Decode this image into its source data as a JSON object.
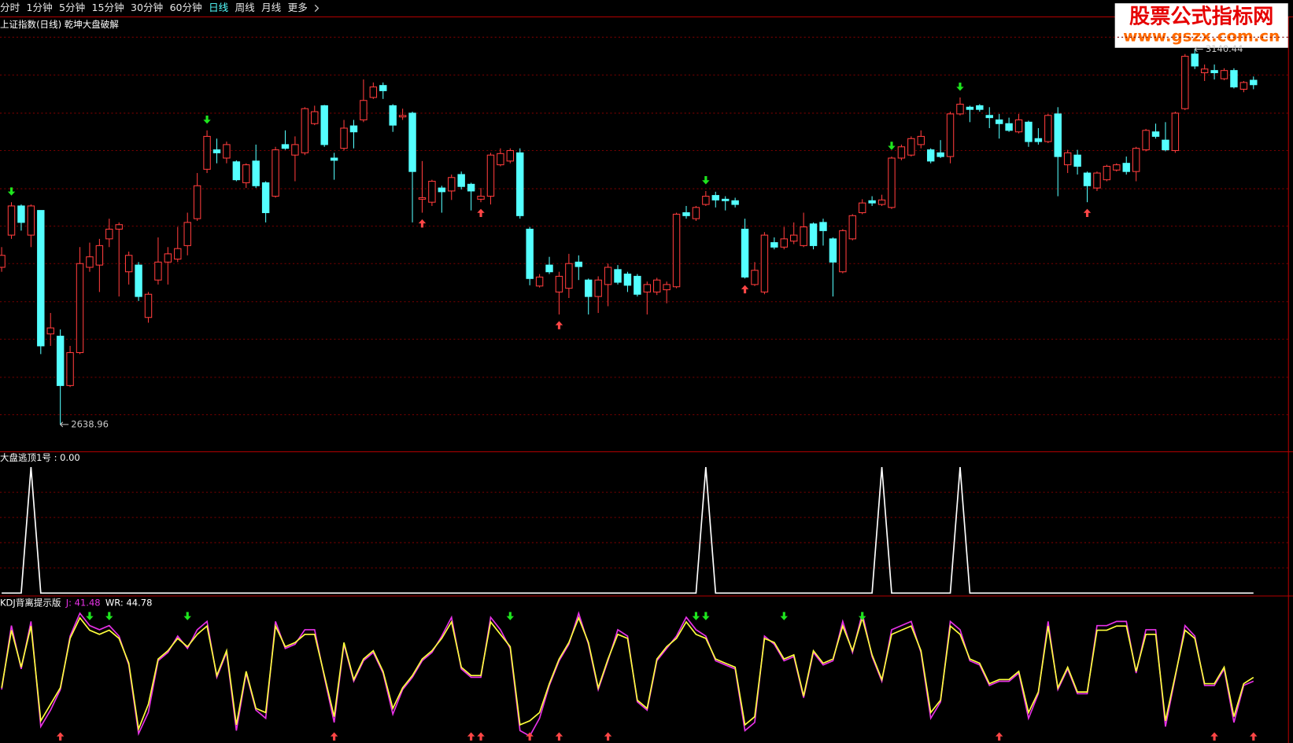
{
  "toolbar": {
    "tabs": [
      "分时",
      "1分钟",
      "5分钟",
      "15分钟",
      "30分钟",
      "60分钟",
      "日线",
      "周线",
      "月线",
      "更多"
    ],
    "active": 6
  },
  "watermark": {
    "title": "股票公式指标网",
    "url": "www.gszx.com.cn"
  },
  "chart_data": [
    {
      "type": "candlestick",
      "title": "上证指数(日线) 乾坤大盘破解",
      "up_color": "#ff3c3c",
      "down_color": "#54ffff",
      "ylim": [
        2603,
        3182
      ],
      "ygrid": [
        3156.5,
        3106,
        3055,
        3005,
        2954,
        2904,
        2854,
        2803,
        2753,
        2702,
        2652
      ],
      "ohlc": [
        [
          2849,
          2876,
          2843,
          2865
        ],
        [
          2892,
          2936,
          2887,
          2931
        ],
        [
          2931,
          2933,
          2898,
          2909
        ],
        [
          2892,
          2933,
          2876,
          2931
        ],
        [
          2925,
          2925,
          2733,
          2744
        ],
        [
          2760,
          2788,
          2744,
          2768
        ],
        [
          2757,
          2766,
          2638.96,
          2691
        ],
        [
          2691,
          2744,
          2689,
          2735
        ],
        [
          2735,
          2876,
          2733,
          2854
        ],
        [
          2849,
          2882,
          2843,
          2863
        ],
        [
          2852,
          2887,
          2816,
          2878
        ],
        [
          2887,
          2914,
          2876,
          2900
        ],
        [
          2900,
          2909,
          2810,
          2906
        ],
        [
          2843,
          2870,
          2826,
          2865
        ],
        [
          2852,
          2856,
          2804,
          2810
        ],
        [
          2782,
          2816,
          2775,
          2813
        ],
        [
          2832,
          2889,
          2826,
          2856
        ],
        [
          2856,
          2876,
          2826,
          2867
        ],
        [
          2860,
          2903,
          2856,
          2874
        ],
        [
          2878,
          2922,
          2865,
          2909
        ],
        [
          2914,
          2975,
          2911,
          2958
        ],
        [
          2980,
          3032,
          2975,
          3024
        ],
        [
          3006,
          3021,
          2988,
          3002
        ],
        [
          2995,
          3017,
          2988,
          3013
        ],
        [
          2990,
          2992,
          2964,
          2966
        ],
        [
          2962,
          2988,
          2955,
          2986
        ],
        [
          2991,
          3013,
          2955,
          2958
        ],
        [
          2962,
          2964,
          2909,
          2922
        ],
        [
          2944,
          3010,
          2942,
          3006
        ],
        [
          3013,
          3032,
          3006,
          3008
        ],
        [
          2999,
          3024,
          2964,
          3013
        ],
        [
          3002,
          3063,
          2999,
          3061
        ],
        [
          3041,
          3065,
          3039,
          3057
        ],
        [
          3065,
          3066,
          3010,
          3013
        ],
        [
          2995,
          3002,
          2966,
          2992
        ],
        [
          3008,
          3046,
          3005,
          3035
        ],
        [
          3038,
          3046,
          3008,
          3030
        ],
        [
          3046,
          3100,
          3043,
          3072
        ],
        [
          3076,
          3096,
          3074,
          3090
        ],
        [
          3092,
          3096,
          3074,
          3085
        ],
        [
          3065,
          3067,
          3030,
          3039
        ],
        [
          3050,
          3061,
          3046,
          3052
        ],
        [
          3055,
          3057,
          2909,
          2977
        ],
        [
          2940,
          2991,
          2922,
          2942
        ],
        [
          2936,
          2966,
          2931,
          2964
        ],
        [
          2955,
          2958,
          2922,
          2950
        ],
        [
          2951,
          2973,
          2939,
          2969
        ],
        [
          2973,
          2977,
          2953,
          2957
        ],
        [
          2960,
          2962,
          2925,
          2951
        ],
        [
          2940,
          2955,
          2936,
          2944
        ],
        [
          2944,
          3002,
          2933,
          2999
        ],
        [
          2986,
          3008,
          2984,
          3001
        ],
        [
          2991,
          3008,
          2988,
          3005
        ],
        [
          3002,
          3008,
          2914,
          2918
        ],
        [
          2900,
          2903,
          2825,
          2834
        ],
        [
          2824,
          2840,
          2822,
          2836
        ],
        [
          2852,
          2863,
          2840,
          2843
        ],
        [
          2816,
          2843,
          2786,
          2837
        ],
        [
          2821,
          2867,
          2808,
          2854
        ],
        [
          2856,
          2865,
          2832,
          2850
        ],
        [
          2832,
          2834,
          2786,
          2810
        ],
        [
          2810,
          2837,
          2788,
          2832
        ],
        [
          2826,
          2854,
          2797,
          2849
        ],
        [
          2846,
          2852,
          2826,
          2829
        ],
        [
          2840,
          2843,
          2816,
          2825
        ],
        [
          2837,
          2840,
          2810,
          2813
        ],
        [
          2816,
          2830,
          2786,
          2826
        ],
        [
          2816,
          2835,
          2812,
          2832
        ],
        [
          2819,
          2830,
          2801,
          2826
        ],
        [
          2823,
          2922,
          2821,
          2920
        ],
        [
          2922,
          2931,
          2914,
          2918
        ],
        [
          2914,
          2931,
          2911,
          2929
        ],
        [
          2933,
          2951,
          2931,
          2944
        ],
        [
          2945,
          2950,
          2929,
          2939
        ],
        [
          2940,
          2944,
          2925,
          2938
        ],
        [
          2938,
          2942,
          2929,
          2933
        ],
        [
          2900,
          2914,
          2834,
          2836
        ],
        [
          2826,
          2856,
          2824,
          2845
        ],
        [
          2816,
          2896,
          2813,
          2892
        ],
        [
          2882,
          2889,
          2873,
          2876
        ],
        [
          2876,
          2903,
          2873,
          2887
        ],
        [
          2884,
          2909,
          2880,
          2892
        ],
        [
          2878,
          2922,
          2876,
          2903
        ],
        [
          2907,
          2909,
          2873,
          2878
        ],
        [
          2909,
          2914,
          2878,
          2898
        ],
        [
          2887,
          2889,
          2810,
          2856
        ],
        [
          2843,
          2900,
          2841,
          2898
        ],
        [
          2887,
          2920,
          2885,
          2918
        ],
        [
          2922,
          2940,
          2920,
          2935
        ],
        [
          2938,
          2944,
          2931,
          2935
        ],
        [
          2933,
          2946,
          2931,
          2939
        ],
        [
          2929,
          2997,
          2927,
          2995
        ],
        [
          2995,
          3013,
          2992,
          3010
        ],
        [
          2999,
          3024,
          2997,
          3021
        ],
        [
          3013,
          3032,
          3008,
          3024
        ],
        [
          3006,
          3008,
          2988,
          2991
        ],
        [
          3002,
          3019,
          2995,
          2997
        ],
        [
          2997,
          3057,
          2988,
          3054
        ],
        [
          3054,
          3076,
          3052,
          3067
        ],
        [
          3063,
          3065,
          3043,
          3060
        ],
        [
          3065,
          3067,
          3057,
          3060
        ],
        [
          3052,
          3063,
          3035,
          3049
        ],
        [
          3046,
          3054,
          3021,
          3041
        ],
        [
          3041,
          3049,
          3030,
          3032
        ],
        [
          3030,
          3054,
          3028,
          3046
        ],
        [
          3043,
          3045,
          3010,
          3017
        ],
        [
          3021,
          3035,
          3013,
          3017
        ],
        [
          3017,
          3054,
          3015,
          3052
        ],
        [
          3054,
          3063,
          2944,
          2997
        ],
        [
          2986,
          3006,
          2975,
          3002
        ],
        [
          2999,
          3006,
          2973,
          2984
        ],
        [
          2975,
          2977,
          2936,
          2958
        ],
        [
          2955,
          2977,
          2951,
          2975
        ],
        [
          2966,
          2986,
          2964,
          2984
        ],
        [
          2979,
          2988,
          2977,
          2986
        ],
        [
          2988,
          2997,
          2973,
          2977
        ],
        [
          2977,
          3010,
          2964,
          3008
        ],
        [
          3006,
          3034,
          3004,
          3032
        ],
        [
          3030,
          3041,
          3021,
          3024
        ],
        [
          3019,
          3043,
          3004,
          3006
        ],
        [
          3005,
          3057,
          3002,
          3055
        ],
        [
          3061,
          3134,
          3059,
          3131
        ],
        [
          3134,
          3140.44,
          3114,
          3118
        ],
        [
          3109,
          3120,
          3098,
          3114
        ],
        [
          3112,
          3120,
          3100,
          3109
        ],
        [
          3101,
          3115,
          3099,
          3112
        ],
        [
          3112,
          3115,
          3088,
          3090
        ],
        [
          3087,
          3098,
          3083,
          3096
        ],
        [
          3099,
          3104,
          3087,
          3093
        ]
      ],
      "sell_signals": [
        1,
        21,
        72,
        91,
        98
      ],
      "buy_signals": [
        43,
        49,
        57,
        76,
        111
      ],
      "signal_colors": [
        "#1ee61e",
        "#ff4646"
      ]
    },
    {
      "type": "line",
      "title": "大盘逃顶1号 : 0.00",
      "ylim": [
        0,
        1
      ],
      "ygrid": [
        0.2,
        0.4,
        0.6,
        0.8
      ],
      "series": [
        {
          "color": "#ffffff",
          "values": [
            0,
            0,
            0,
            1,
            0,
            0,
            0,
            0,
            0,
            0,
            0,
            0,
            0,
            0,
            0,
            0,
            0,
            0,
            0,
            0,
            0,
            0,
            0,
            0,
            0,
            0,
            0,
            0,
            0,
            0,
            0,
            0,
            0,
            0,
            0,
            0,
            0,
            0,
            0,
            0,
            0,
            0,
            0,
            0,
            0,
            0,
            0,
            0,
            0,
            0,
            0,
            0,
            0,
            0,
            0,
            0,
            0,
            0,
            0,
            0,
            0,
            0,
            0,
            0,
            0,
            0,
            0,
            0,
            0,
            0,
            0,
            0,
            1,
            0,
            0,
            0,
            0,
            0,
            0,
            0,
            0,
            0,
            0,
            0,
            0,
            0,
            0,
            0,
            0,
            0,
            1,
            0,
            0,
            0,
            0,
            0,
            0,
            0,
            1,
            0,
            0,
            0,
            0,
            0,
            0,
            0,
            0,
            0,
            0,
            0,
            0,
            0,
            0,
            0,
            0,
            0,
            0,
            0,
            0,
            0,
            0,
            0,
            0,
            0,
            0,
            0,
            0,
            0,
            0
          ]
        }
      ]
    },
    {
      "type": "line",
      "title": "KDJ背离提示版",
      "ylim": [
        -10.7,
        103.6
      ],
      "series": [
        {
          "name": "J: 41.48",
          "color": "#e632e6",
          "values": [
            34.2,
            89.7,
            52.1,
            93.3,
            2.1,
            16.4,
            34.2,
            80.6,
            100.4,
            89.7,
            86.1,
            89.7,
            80.6,
            55.6,
            -4,
            14.4,
            59.2,
            66.4,
            80.6,
            69.9,
            86.1,
            93.3,
            44.9,
            66.4,
            -1.4,
            48.5,
            16.4,
            9.3,
            93.3,
            69.9,
            73.5,
            86.1,
            86.1,
            44.9,
            5.7,
            73.5,
            41.4,
            59.2,
            66.4,
            48.5,
            12.9,
            34.2,
            44.9,
            59.2,
            66.4,
            80.6,
            96.9,
            52.1,
            44.9,
            44.9,
            96.9,
            86.1,
            69.9,
            -1.4,
            -6.1,
            9.3,
            37.8,
            59.2,
            73.5,
            100.4,
            73.5,
            34.2,
            59.2,
            86.1,
            80.6,
            23.5,
            16.4,
            59.2,
            69.9,
            80.6,
            96.9,
            86.1,
            80.6,
            59.2,
            55.6,
            52.1,
            -1.4,
            5.7,
            80.6,
            73.5,
            59.2,
            62.8,
            27.1,
            66.4,
            55.6,
            59.2,
            93.3,
            66.4,
            100.4,
            62.8,
            41.4,
            86.1,
            89.7,
            93.3,
            66.4,
            9.3,
            23.5,
            93.3,
            86.1,
            59.2,
            55.6,
            37.8,
            41.4,
            41.4,
            48.5,
            9.3,
            30.6,
            93.3,
            34.2,
            52.1,
            30.6,
            30.6,
            89.7,
            89.7,
            93.3,
            93.3,
            48.5,
            86.1,
            86.1,
            2.1,
            44.9,
            89.7,
            80.6,
            37.8,
            37.8,
            52.1,
            5.7,
            37.8,
            41.48
          ]
        },
        {
          "name": "WR: 44.78",
          "color": "#ffff3c",
          "values": [
            35.7,
            85.7,
            53.6,
            89.3,
            7.1,
            21.4,
            35.7,
            78.6,
            96.4,
            85.7,
            82.1,
            85.7,
            78.6,
            57.1,
            0,
            21.4,
            60.7,
            67.9,
            78.6,
            71.4,
            82.1,
            89.3,
            46.4,
            67.9,
            3.6,
            50,
            17.9,
            14.3,
            89.3,
            71.4,
            75,
            82.1,
            82.1,
            46.4,
            10.7,
            75,
            42.9,
            60.7,
            67.9,
            50,
            17.9,
            35.7,
            46.4,
            60.7,
            67.9,
            78.6,
            92.9,
            53.6,
            46.4,
            46.4,
            92.9,
            82.1,
            71.4,
            3.6,
            7.1,
            14.3,
            39.3,
            60.7,
            75,
            96.4,
            75,
            35.7,
            60.7,
            82.1,
            78.6,
            25,
            17.9,
            60.7,
            71.4,
            78.6,
            92.9,
            82.1,
            78.6,
            60.7,
            57.1,
            53.6,
            3.6,
            10.7,
            78.6,
            75,
            60.7,
            64.3,
            28.6,
            67.9,
            57.1,
            60.7,
            89.3,
            67.9,
            96.4,
            64.3,
            42.9,
            82.1,
            85.7,
            89.3,
            67.9,
            14.3,
            25,
            89.3,
            82.1,
            60.7,
            57.1,
            39.3,
            42.9,
            42.9,
            50,
            14.3,
            32.1,
            89.3,
            35.7,
            53.6,
            32.1,
            32.1,
            85.7,
            85.7,
            89.3,
            89.3,
            50,
            82.1,
            82.1,
            7.1,
            46.4,
            85.7,
            78.6,
            39.3,
            39.3,
            53.6,
            10.7,
            39.3,
            44.78
          ]
        }
      ],
      "sell_signals": [
        9,
        11,
        19,
        52,
        71,
        72,
        80,
        88
      ],
      "buy_signals": [
        6,
        34,
        48,
        49,
        54,
        57,
        62,
        102,
        124,
        128
      ],
      "signal_colors": [
        "#1ee61e",
        "#ff4646"
      ]
    }
  ]
}
